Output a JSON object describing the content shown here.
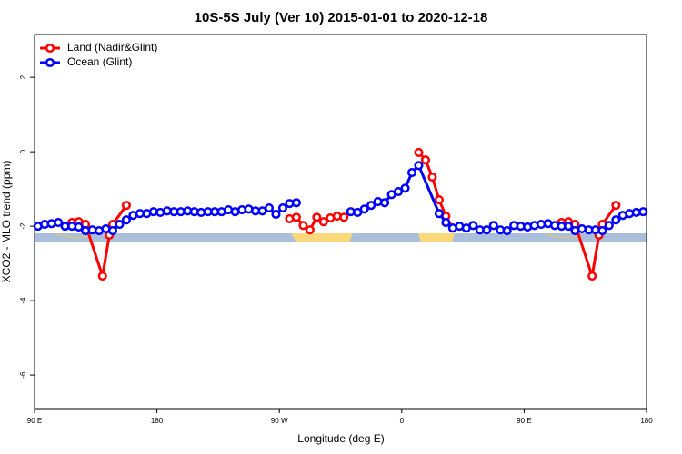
{
  "chart_data": {
    "type": "line",
    "title": "10S-5S July (Ver 10)   2015-01-01 to 2020-12-18",
    "xlabel": "Longitude (deg E)",
    "ylabel": "XCO2 - MLO trend (ppm)",
    "xlim": [
      90,
      540
    ],
    "ylim": [
      -6.9,
      3.15
    ],
    "xticks": [
      {
        "value": 90,
        "label": "90 E"
      },
      180,
      {
        "value": 270,
        "label": "90 W"
      },
      {
        "value": 360,
        "label": "0"
      },
      {
        "value": 450,
        "label": "90 E"
      },
      {
        "value": 540,
        "label": "180"
      }
    ],
    "yticks": [
      2,
      0,
      -2,
      -4,
      -6
    ],
    "legend": "top-left",
    "series": [
      {
        "name": "Land (Nadir&Glint)",
        "color": "#ff0000",
        "x": [
          117.5,
          122.5,
          127.5,
          140,
          145,
          147.5,
          157.5,
          220,
          277.5,
          282.5,
          287.5,
          292.5,
          297.5,
          302.5,
          307.5,
          312.5,
          317.5,
          345,
          372.5,
          377.5,
          382.5,
          387.5,
          392.5,
          397.5,
          440,
          477.5,
          482.5,
          487.5,
          500,
          505,
          507.5,
          517.5
        ],
        "values": [
          -1.9,
          -1.88,
          -1.95,
          -3.34,
          -2.24,
          -1.95,
          -1.44,
          null,
          -1.8,
          -1.76,
          -1.98,
          -2.1,
          -1.76,
          -1.88,
          -1.78,
          -1.73,
          -1.76,
          null,
          -0.02,
          -0.22,
          -0.68,
          -1.29,
          -1.73,
          -2.05,
          null,
          -1.9,
          -1.88,
          -1.95,
          -3.34,
          -2.24,
          -1.95,
          -1.44
        ]
      },
      {
        "name": "Ocean (Glint)",
        "color": "#0000ff",
        "x": [
          92.5,
          97.5,
          102.5,
          107.5,
          112.5,
          117.5,
          122.5,
          127.5,
          132.5,
          137.5,
          142.5,
          147.5,
          152.5,
          157.5,
          162.5,
          167.5,
          172.5,
          177.5,
          182.5,
          187.5,
          192.5,
          197.5,
          202.5,
          207.5,
          212.5,
          217.5,
          222.5,
          227.5,
          232.5,
          237.5,
          242.5,
          247.5,
          252.5,
          257.5,
          262.5,
          267.5,
          272.5,
          277.5,
          282.5,
          302.5,
          322.5,
          327.5,
          332.5,
          337.5,
          342.5,
          347.5,
          352.5,
          357.5,
          362.5,
          367.5,
          372.5,
          387.5,
          392.5,
          397.5,
          402.5,
          407.5,
          412.5,
          417.5,
          422.5,
          427.5,
          432.5,
          437.5,
          442.5,
          447.5,
          452.5,
          457.5,
          462.5,
          467.5,
          472.5,
          477.5,
          482.5,
          487.5,
          492.5,
          497.5,
          502.5,
          507.5,
          512.5,
          517.5,
          522.5,
          527.5,
          532.5,
          537.5
        ],
        "values": [
          -2.0,
          -1.95,
          -1.93,
          -1.9,
          -2.0,
          -2.0,
          -2.02,
          -2.12,
          -2.1,
          -2.12,
          -2.07,
          -2.12,
          -1.95,
          -1.83,
          -1.71,
          -1.66,
          -1.66,
          -1.61,
          -1.63,
          -1.59,
          -1.61,
          -1.61,
          -1.59,
          -1.61,
          -1.63,
          -1.61,
          -1.61,
          -1.61,
          -1.56,
          -1.61,
          -1.56,
          -1.54,
          -1.59,
          -1.59,
          -1.51,
          -1.68,
          -1.51,
          -1.39,
          -1.37,
          null,
          -1.61,
          -1.63,
          -1.54,
          -1.44,
          -1.34,
          -1.37,
          -1.15,
          -1.07,
          -0.98,
          -0.56,
          -0.37,
          -1.66,
          -1.9,
          -2.05,
          -2.0,
          -2.05,
          -1.98,
          -2.1,
          -2.1,
          -1.98,
          -2.1,
          -2.12,
          -1.98,
          -2.0,
          -2.02,
          -1.98,
          -1.95,
          -1.93,
          -1.98,
          -2.0,
          -2.0,
          -2.12,
          -2.07,
          -2.1,
          -2.1,
          -2.12,
          -1.98,
          -1.83,
          -1.71,
          -1.66,
          -1.63,
          -1.61
        ]
      }
    ]
  }
}
